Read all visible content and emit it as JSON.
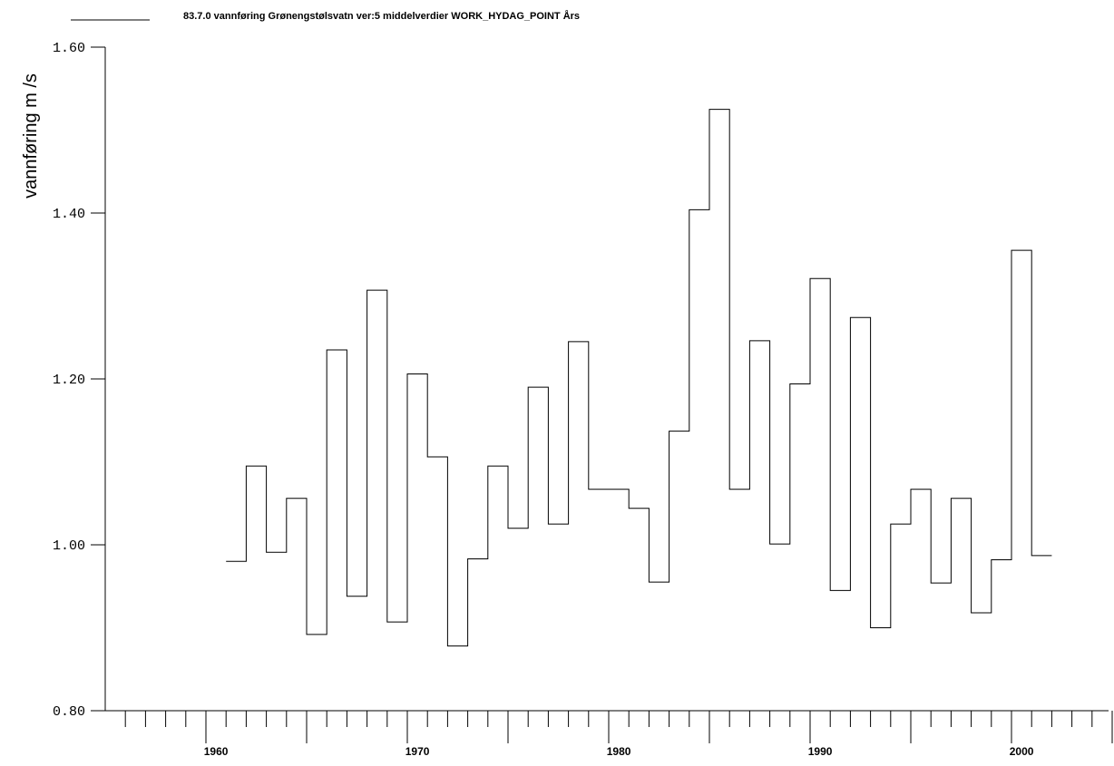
{
  "chart_data": {
    "type": "line",
    "style": "step",
    "title": "83.7.0 vannføring Grønengstølsvatn ver:5 middelverdier WORK_HYDAG_POINT Års",
    "ylabel": "vannføring  m /s",
    "xlabel": "",
    "ylim": [
      0.8,
      1.6
    ],
    "xlim": [
      1955,
      2005
    ],
    "y_ticks": [
      "0.80",
      "1.00",
      "1.20",
      "1.40",
      "1.60"
    ],
    "x_ticks": [
      "1960",
      "1970",
      "1980",
      "1990",
      "2000"
    ],
    "grid": false,
    "legend": "top-left",
    "series": [
      {
        "name": "83.7.0 vannføring Grønengstølsvatn ver:5 middelverdier WORK_HYDAG_POINT Års",
        "x": [
          1961,
          1962,
          1963,
          1964,
          1965,
          1966,
          1967,
          1968,
          1969,
          1970,
          1971,
          1972,
          1973,
          1974,
          1975,
          1976,
          1977,
          1978,
          1979,
          1980,
          1981,
          1982,
          1983,
          1984,
          1985,
          1986,
          1987,
          1988,
          1989,
          1990,
          1991,
          1992,
          1993,
          1994,
          1995,
          1996,
          1997,
          1998,
          1999,
          2000,
          2001
        ],
        "values": [
          0.98,
          1.095,
          0.991,
          1.056,
          0.892,
          1.235,
          0.938,
          1.307,
          0.907,
          1.206,
          1.106,
          0.878,
          0.983,
          1.095,
          1.02,
          1.19,
          1.025,
          1.245,
          1.067,
          1.067,
          1.044,
          0.955,
          1.137,
          1.404,
          1.525,
          1.067,
          1.246,
          1.001,
          1.194,
          1.321,
          0.945,
          1.274,
          0.9,
          1.025,
          1.067,
          0.954,
          1.056,
          0.918,
          0.982,
          1.355,
          0.987
        ]
      }
    ]
  }
}
